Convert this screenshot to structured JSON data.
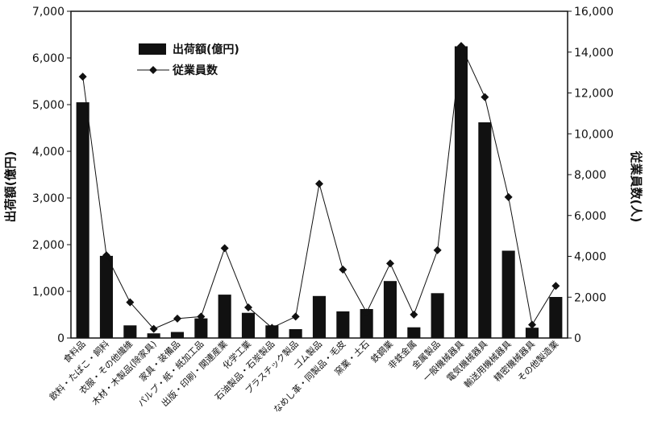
{
  "chart_data": {
    "type": "bar",
    "categories": [
      "食料品",
      "飲料・たばこ・飼料",
      "衣服・その他繊維",
      "木材・木製品(除家具)",
      "家具・装備品",
      "パルプ・紙・紙加工品",
      "出版・印刷・関連産業",
      "化学工業",
      "石油製品・石炭製品",
      "プラスチック製品",
      "ゴム製品",
      "なめし革・同製品・毛皮",
      "窯業・土石",
      "鉄鋼業",
      "非鉄金属",
      "金属製品",
      "一般機械器具",
      "電気機械器具",
      "輸送用機械器具",
      "精密機械器具",
      "その他製造業"
    ],
    "series": [
      {
        "name": "出荷額(億円)",
        "kind": "bar",
        "axis": "left",
        "values": [
          5050,
          1760,
          270,
          100,
          130,
          420,
          930,
          540,
          270,
          190,
          900,
          570,
          620,
          1220,
          230,
          960,
          6250,
          4620,
          1870,
          220,
          880
        ]
      },
      {
        "name": "従業員数",
        "kind": "line",
        "axis": "right",
        "values": [
          12800,
          4050,
          1750,
          450,
          950,
          1050,
          4400,
          1500,
          500,
          1050,
          7550,
          3350,
          1250,
          3650,
          1150,
          4300,
          14300,
          11800,
          6900,
          650,
          2550
        ]
      }
    ],
    "ylabel": "出荷額(億円)",
    "y2label": "従業員数(人)",
    "ylim": [
      0,
      7000
    ],
    "y2lim": [
      0,
      16000
    ],
    "yticks": [
      "0",
      "1,000",
      "2,000",
      "3,000",
      "4,000",
      "5,000",
      "6,000",
      "7,000"
    ],
    "y2ticks": [
      "0",
      "2,000",
      "4,000",
      "6,000",
      "8,000",
      "10,000",
      "12,000",
      "14,000",
      "16,000"
    ],
    "legend_position": "top-left",
    "grid": false,
    "colors": {
      "bar": "#111111",
      "line": "#111111",
      "marker": "#111111"
    }
  }
}
